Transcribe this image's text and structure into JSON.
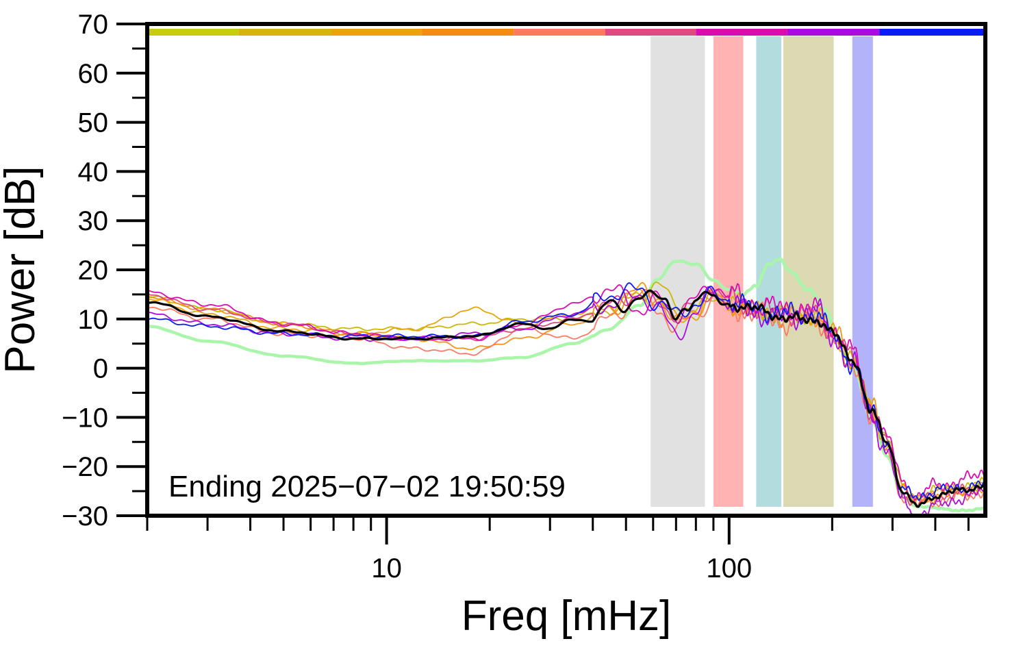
{
  "chart_data": {
    "type": "line",
    "xlabel": "Freq [mHz]",
    "ylabel": "Power [dB]",
    "annotation": "Ending 2025−07−02 19:50:59",
    "x_scale": "log",
    "xlim": [
      2,
      560
    ],
    "ylim": [
      -30,
      70
    ],
    "y_ticks": [
      70,
      60,
      50,
      40,
      30,
      20,
      10,
      0,
      -10,
      -20,
      -30
    ],
    "y_tick_labels": [
      "70",
      "60",
      "50",
      "40",
      "30",
      "20",
      "10",
      "0",
      "−10",
      "−20",
      "−30"
    ],
    "x_major_ticks": [
      10,
      100
    ],
    "x_tick_labels": [
      "10",
      "100"
    ],
    "x_minor_ticks": [
      2,
      3,
      4,
      5,
      6,
      7,
      8,
      9,
      20,
      30,
      40,
      50,
      60,
      70,
      80,
      90,
      200,
      300,
      400,
      500
    ],
    "grid": false,
    "top_color_bar": [
      {
        "from": 2,
        "to": 3.7,
        "color": "#c8cc10"
      },
      {
        "from": 3.7,
        "to": 6.9,
        "color": "#d6b310"
      },
      {
        "from": 6.9,
        "to": 12.7,
        "color": "#eea010"
      },
      {
        "from": 12.7,
        "to": 23.5,
        "color": "#f28a14"
      },
      {
        "from": 23.5,
        "to": 43.5,
        "color": "#fa7a62"
      },
      {
        "from": 43.5,
        "to": 80,
        "color": "#dd4a80"
      },
      {
        "from": 80,
        "to": 148,
        "color": "#d90cb2"
      },
      {
        "from": 148,
        "to": 275,
        "color": "#a90cde"
      },
      {
        "from": 275,
        "to": 560,
        "color": "#0a1cf6"
      }
    ],
    "bands": [
      {
        "from": 59,
        "to": 85,
        "color": "#e1e1e1"
      },
      {
        "from": 90,
        "to": 110,
        "color": "#ffb3b3"
      },
      {
        "from": 120,
        "to": 142,
        "color": "#b3dcdf"
      },
      {
        "from": 144,
        "to": 202,
        "color": "#dad9b2"
      },
      {
        "from": 229,
        "to": 263,
        "color": "#b3b3f9"
      }
    ],
    "series": [
      {
        "color": "#a9f5a9",
        "width": 4.5,
        "wiggle": 0.3,
        "seed": 1,
        "x": [
          2,
          3,
          5,
          8,
          12,
          18,
          25,
          35,
          45,
          55,
          62,
          70,
          80,
          90,
          100,
          110,
          120,
          130,
          140,
          150,
          170,
          190,
          210,
          230,
          260,
          290,
          320,
          350,
          400,
          500,
          560
        ],
        "y": [
          8.5,
          5.5,
          2.5,
          1,
          1.5,
          1.5,
          2.2,
          5,
          8,
          13,
          18,
          22,
          21,
          18,
          16,
          15,
          17,
          21,
          22,
          20,
          16,
          12,
          6,
          0,
          -10,
          -18,
          -26,
          -28,
          -28.5,
          -29,
          -28.5
        ]
      },
      {
        "color": "#c9b806",
        "width": 1.8,
        "wiggle": 1.6,
        "seed": 2,
        "x": [
          2,
          3,
          5,
          8,
          12,
          18,
          25,
          35,
          45,
          55,
          62,
          70,
          80,
          90,
          100,
          120,
          150,
          180,
          200,
          230,
          260,
          290,
          320,
          350,
          400,
          500,
          560
        ],
        "y": [
          14.5,
          12,
          9,
          8,
          8,
          9,
          10,
          10,
          12,
          15,
          17,
          13,
          12,
          14,
          14,
          12,
          11,
          10,
          7,
          2,
          -8,
          -14,
          -24,
          -26,
          -25,
          -24,
          -23.5
        ]
      },
      {
        "color": "#e8a40c",
        "width": 1.8,
        "wiggle": 1.8,
        "seed": 3,
        "x": [
          2,
          3,
          5,
          8,
          12,
          18,
          25,
          35,
          45,
          55,
          62,
          70,
          80,
          90,
          100,
          120,
          150,
          180,
          200,
          230,
          260,
          290,
          320,
          350,
          400,
          500,
          560
        ],
        "y": [
          14,
          11,
          8,
          7,
          8,
          12,
          9,
          11,
          13,
          15,
          14,
          10,
          11,
          15,
          13,
          12,
          11,
          11,
          7,
          1,
          -9,
          -15,
          -25,
          -27,
          -25,
          -24.5,
          -24
        ]
      },
      {
        "color": "#f29614",
        "width": 1.8,
        "wiggle": 1.8,
        "seed": 4,
        "x": [
          2,
          3,
          5,
          8,
          12,
          18,
          25,
          35,
          45,
          55,
          62,
          70,
          80,
          90,
          100,
          120,
          150,
          180,
          200,
          230,
          260,
          290,
          320,
          350,
          400,
          500,
          560
        ],
        "y": [
          14.5,
          12,
          9,
          7,
          6,
          4,
          6,
          9,
          12,
          16,
          14,
          9,
          12,
          15,
          13,
          11,
          10,
          11,
          8,
          2,
          -8,
          -16,
          -24,
          -27,
          -26,
          -25,
          -24.5
        ]
      },
      {
        "color": "#fa7a62",
        "width": 1.8,
        "wiggle": 1.8,
        "seed": 5,
        "x": [
          2,
          3,
          5,
          8,
          12,
          18,
          25,
          35,
          45,
          55,
          62,
          70,
          80,
          90,
          100,
          120,
          150,
          180,
          200,
          230,
          260,
          290,
          320,
          350,
          400,
          500,
          560
        ],
        "y": [
          12.5,
          10,
          7,
          6,
          4,
          3,
          8,
          6,
          10,
          15,
          12,
          8,
          11,
          14,
          12,
          11,
          9,
          10,
          6,
          1,
          -10,
          -17,
          -26,
          -28,
          -27,
          -26,
          -25
        ]
      },
      {
        "color": "#dd4a80",
        "width": 1.8,
        "wiggle": 1.8,
        "seed": 6,
        "x": [
          2,
          3,
          5,
          8,
          12,
          18,
          25,
          35,
          45,
          55,
          62,
          70,
          80,
          90,
          100,
          120,
          150,
          180,
          200,
          230,
          260,
          290,
          320,
          350,
          400,
          500,
          560
        ],
        "y": [
          15,
          12,
          9,
          7,
          6,
          6,
          8,
          10,
          13,
          15,
          13,
          11,
          13,
          16,
          14,
          12,
          11,
          11,
          7,
          2,
          -9,
          -15,
          -25,
          -28,
          -26,
          -25,
          -24
        ]
      },
      {
        "color": "#d90cb2",
        "width": 1.8,
        "wiggle": 2.0,
        "seed": 7,
        "x": [
          2,
          3,
          5,
          8,
          12,
          18,
          25,
          35,
          45,
          55,
          62,
          70,
          80,
          90,
          100,
          120,
          150,
          180,
          200,
          230,
          260,
          290,
          320,
          350,
          400,
          500,
          560
        ],
        "y": [
          15.5,
          13,
          9,
          7,
          6,
          6,
          9,
          13,
          16,
          12,
          14,
          11,
          14,
          17,
          15,
          13,
          12,
          12,
          8,
          3,
          -8,
          -14,
          -23,
          -26,
          -24,
          -22.5,
          -21.5
        ]
      },
      {
        "color": "#a90cde",
        "width": 1.8,
        "wiggle": 2.0,
        "seed": 8,
        "x": [
          2,
          3,
          5,
          8,
          12,
          18,
          25,
          35,
          45,
          55,
          62,
          70,
          80,
          90,
          100,
          120,
          150,
          180,
          200,
          230,
          260,
          290,
          320,
          350,
          400,
          500,
          560
        ],
        "y": [
          11,
          9,
          7,
          6,
          6,
          7,
          8,
          11,
          13,
          15,
          12,
          7,
          11,
          16,
          13,
          11,
          10,
          12,
          6,
          1,
          -10,
          -17,
          -27,
          -30,
          -28,
          -26,
          -25
        ]
      },
      {
        "color": "#0a1cf6",
        "width": 1.8,
        "wiggle": 1.8,
        "seed": 9,
        "x": [
          2,
          3,
          5,
          8,
          12,
          18,
          25,
          35,
          45,
          55,
          62,
          70,
          80,
          90,
          100,
          120,
          150,
          180,
          200,
          230,
          260,
          290,
          320,
          350,
          400,
          500,
          560
        ],
        "y": [
          10,
          8.5,
          7,
          6.5,
          6.5,
          6.5,
          9.5,
          11,
          15,
          16,
          13,
          11,
          13,
          15,
          14,
          12,
          11,
          11,
          7,
          1,
          -9,
          -15,
          -25,
          -26,
          -25,
          -24,
          -23.5
        ]
      },
      {
        "color": "#000000",
        "width": 3.2,
        "wiggle": 0.9,
        "seed": 10,
        "x": [
          2,
          3,
          5,
          8,
          12,
          18,
          25,
          30,
          35,
          40,
          45,
          50,
          55,
          60,
          65,
          70,
          75,
          80,
          85,
          90,
          95,
          100,
          120,
          150,
          180,
          200,
          230,
          260,
          290,
          320,
          350,
          400,
          500,
          560
        ],
        "y": [
          13.5,
          10.5,
          7.5,
          6,
          6,
          6.5,
          9,
          8,
          10,
          9.5,
          14,
          12,
          14,
          16,
          14,
          9.5,
          12,
          14,
          16,
          14,
          13,
          13,
          12,
          10,
          10,
          7,
          2,
          -9,
          -15,
          -25,
          -28,
          -26,
          -24.5,
          -24
        ]
      }
    ]
  }
}
